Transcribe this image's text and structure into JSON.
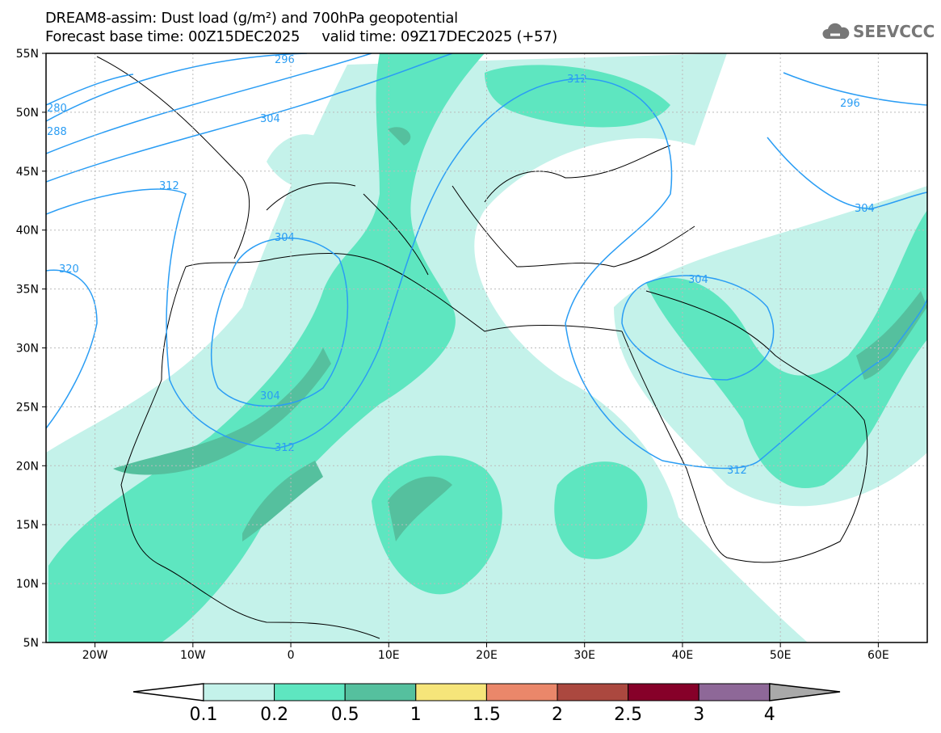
{
  "header": {
    "title": "DREAM8-assim: Dust load (g/m²) and 700hPa geopotential",
    "subtitle": "Forecast base time: 00Z15DEC2025     valid time: 09Z17DEC2025 (+57)",
    "logo": "SEEVCCC"
  },
  "map": {
    "lat_labels": [
      "55N",
      "50N",
      "45N",
      "40N",
      "35N",
      "30N",
      "25N",
      "20N",
      "15N",
      "10N",
      "5N"
    ],
    "lon_labels": [
      "20W",
      "10W",
      "0",
      "10E",
      "20E",
      "30E",
      "40E",
      "50E",
      "60E"
    ],
    "contour_labels": [
      "296",
      "304",
      "280",
      "288",
      "312",
      "320",
      "304",
      "304",
      "312",
      "312",
      "296",
      "304",
      "304",
      "312"
    ],
    "dust_colors": {
      "light": "#c4f2ea",
      "medium": "#5ee6c0",
      "dark": "#55c09e"
    },
    "contour_color": "#2a9df4"
  },
  "colorbar": {
    "labels": [
      "0.1",
      "0.2",
      "0.5",
      "1",
      "1.5",
      "2",
      "2.5",
      "3",
      "4"
    ],
    "colors": [
      "#c4f2ea",
      "#5ee6c0",
      "#55c09e",
      "#f6e57a",
      "#ea876a",
      "#ab483f",
      "#860029",
      "#8e6898"
    ],
    "under_color": "#ffffff",
    "over_color": "#a9a9a9"
  }
}
